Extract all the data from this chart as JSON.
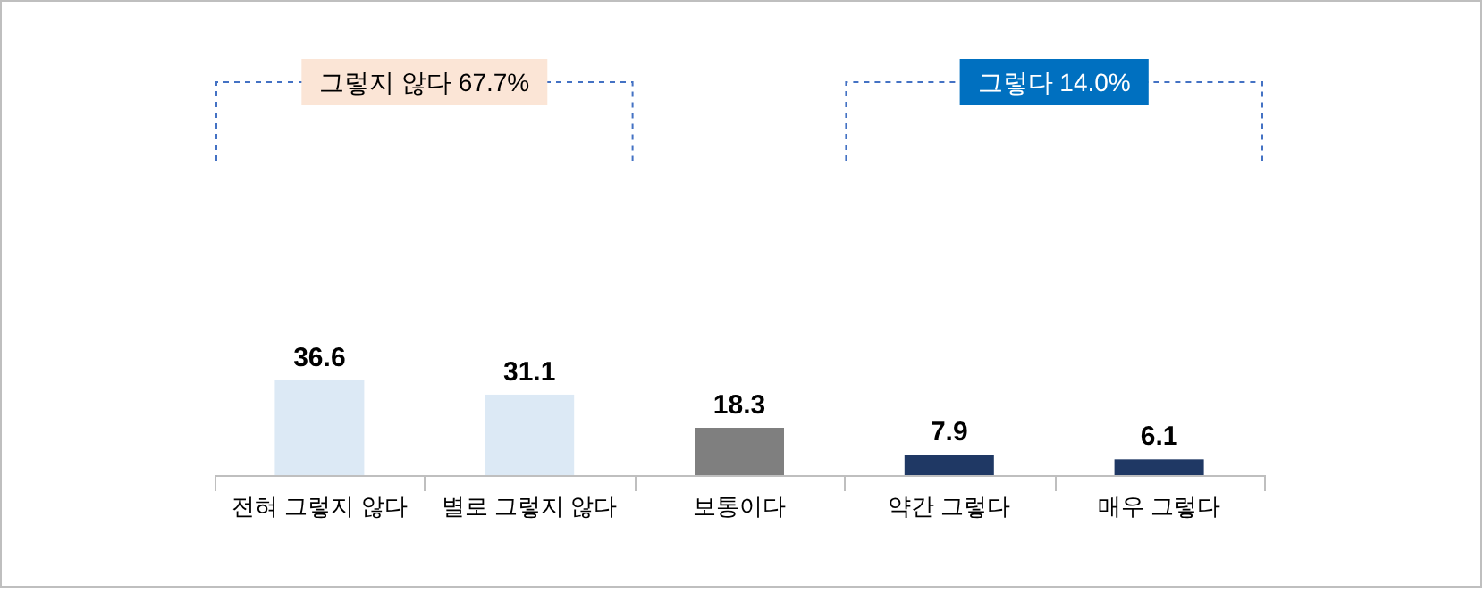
{
  "chart_data": {
    "type": "bar",
    "categories": [
      "전혀 그렇지 않다",
      "별로 그렇지 않다",
      "보통이다",
      "약간 그렇다",
      "매우 그렇다"
    ],
    "values": [
      36.6,
      31.1,
      18.3,
      7.9,
      6.1
    ],
    "colors": [
      "#dce9f5",
      "#dce9f5",
      "#7f7f7f",
      "#1f3864",
      "#1f3864"
    ],
    "data_labels": true,
    "annotations": [
      "그렇지 않다 67.7%",
      "그렇다 14.0%"
    ]
  }
}
